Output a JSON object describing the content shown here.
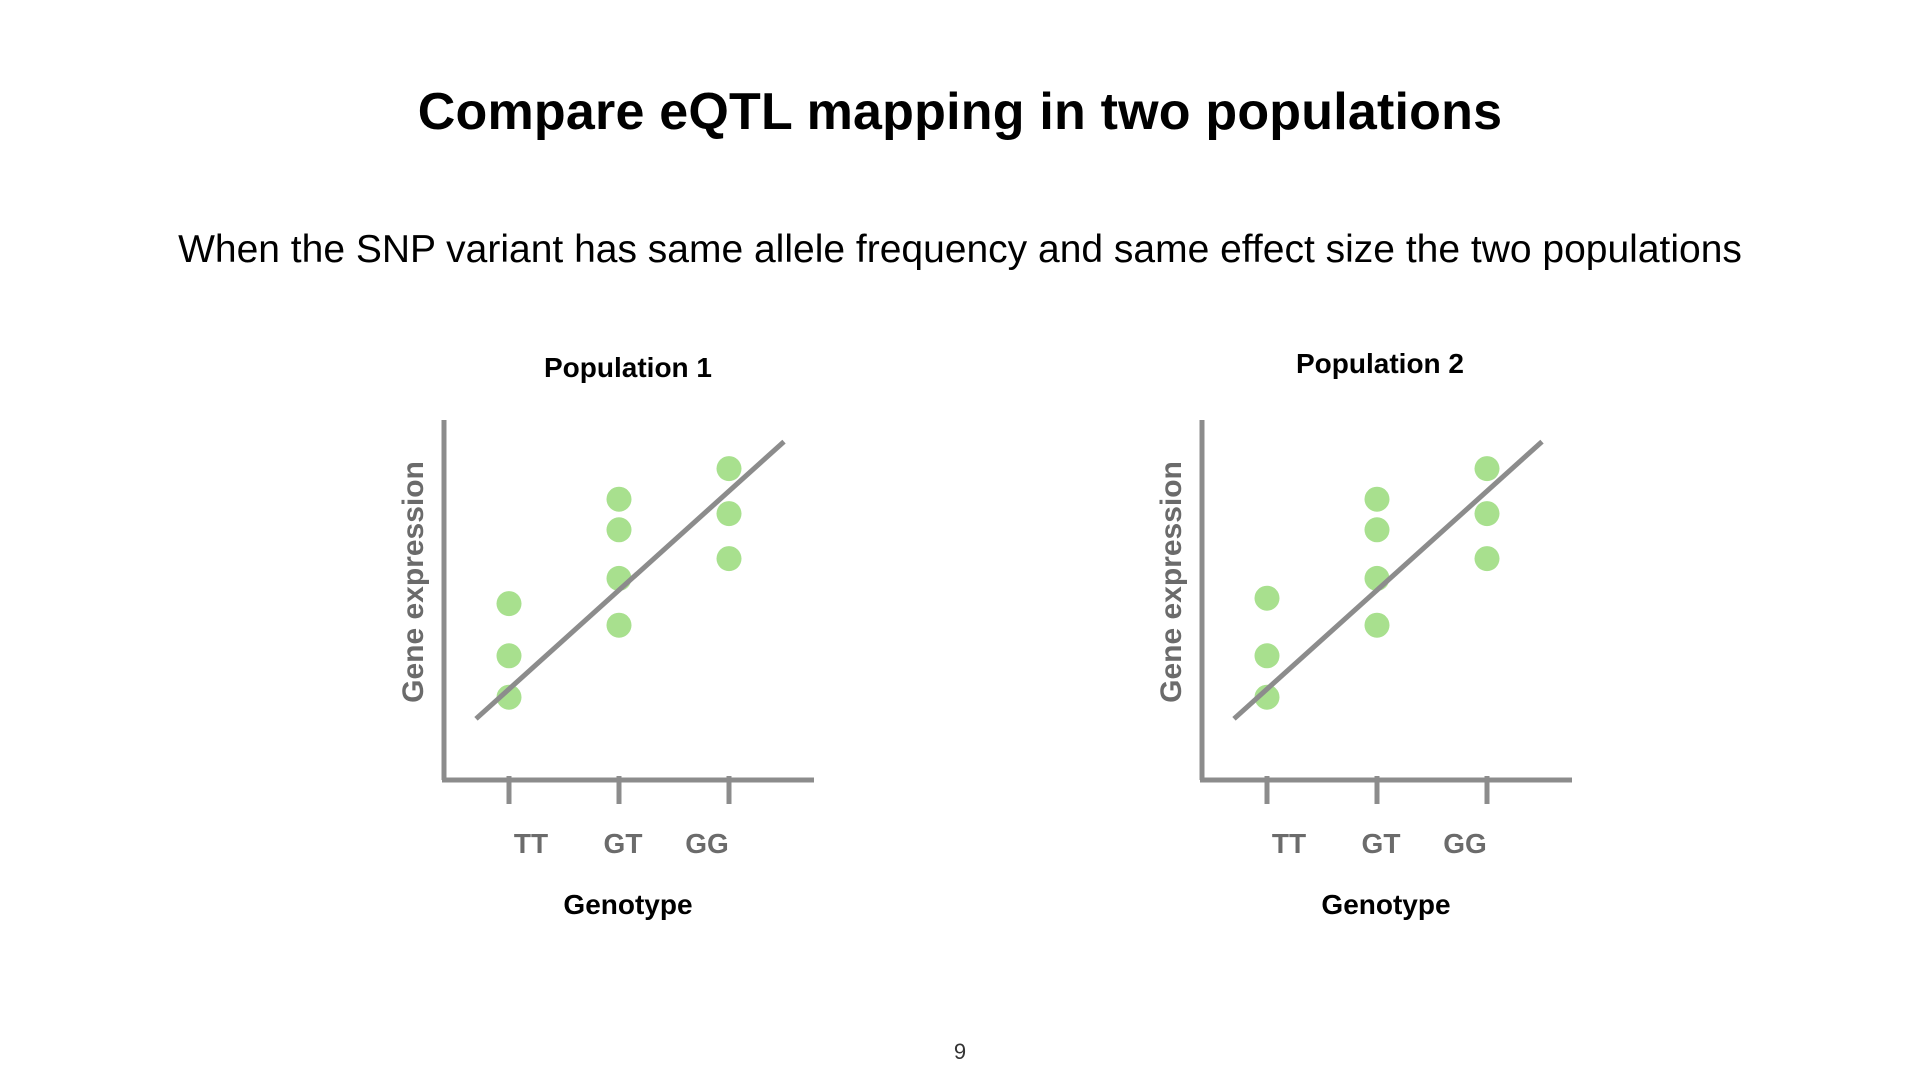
{
  "slide": {
    "title": "Compare eQTL mapping in two populations",
    "subtitle": "When the SNP variant has same allele frequency and same effect size the two populations",
    "page_number": "9"
  },
  "colors": {
    "axis": "#8c8c8c",
    "point": "#a8e08e",
    "fit_line": "#8c8c8c",
    "tick_text": "#6b6b6b"
  },
  "chart_data": [
    {
      "type": "scatter",
      "title": "Population 1",
      "xlabel": "Genotype",
      "ylabel": "Gene expression",
      "categories": [
        "TT",
        "GT",
        "GG"
      ],
      "points": [
        {
          "x": "TT",
          "y": 4.9
        },
        {
          "x": "TT",
          "y": 3.45
        },
        {
          "x": "TT",
          "y": 2.3
        },
        {
          "x": "GT",
          "y": 7.8
        },
        {
          "x": "GT",
          "y": 6.95
        },
        {
          "x": "GT",
          "y": 5.6
        },
        {
          "x": "GT",
          "y": 4.3
        },
        {
          "x": "GG",
          "y": 8.65
        },
        {
          "x": "GG",
          "y": 7.4
        },
        {
          "x": "GG",
          "y": 6.15
        }
      ],
      "trend_line": {
        "x_start": -0.3,
        "y_start": 1.7,
        "x_end": 2.5,
        "y_end": 9.4
      },
      "ylim": [
        0,
        10
      ],
      "grid": false,
      "y_ticks": false
    },
    {
      "type": "scatter",
      "title": "Population 2",
      "xlabel": "Genotype",
      "ylabel": "Gene expression",
      "categories": [
        "TT",
        "GT",
        "GG"
      ],
      "points": [
        {
          "x": "TT",
          "y": 5.05
        },
        {
          "x": "TT",
          "y": 3.45
        },
        {
          "x": "TT",
          "y": 2.3
        },
        {
          "x": "GT",
          "y": 7.8
        },
        {
          "x": "GT",
          "y": 6.95
        },
        {
          "x": "GT",
          "y": 5.6
        },
        {
          "x": "GT",
          "y": 4.3
        },
        {
          "x": "GG",
          "y": 8.65
        },
        {
          "x": "GG",
          "y": 7.4
        },
        {
          "x": "GG",
          "y": 6.15
        }
      ],
      "trend_line": {
        "x_start": -0.3,
        "y_start": 1.7,
        "x_end": 2.5,
        "y_end": 9.4
      },
      "ylim": [
        0,
        10
      ],
      "grid": false,
      "y_ticks": false
    }
  ]
}
